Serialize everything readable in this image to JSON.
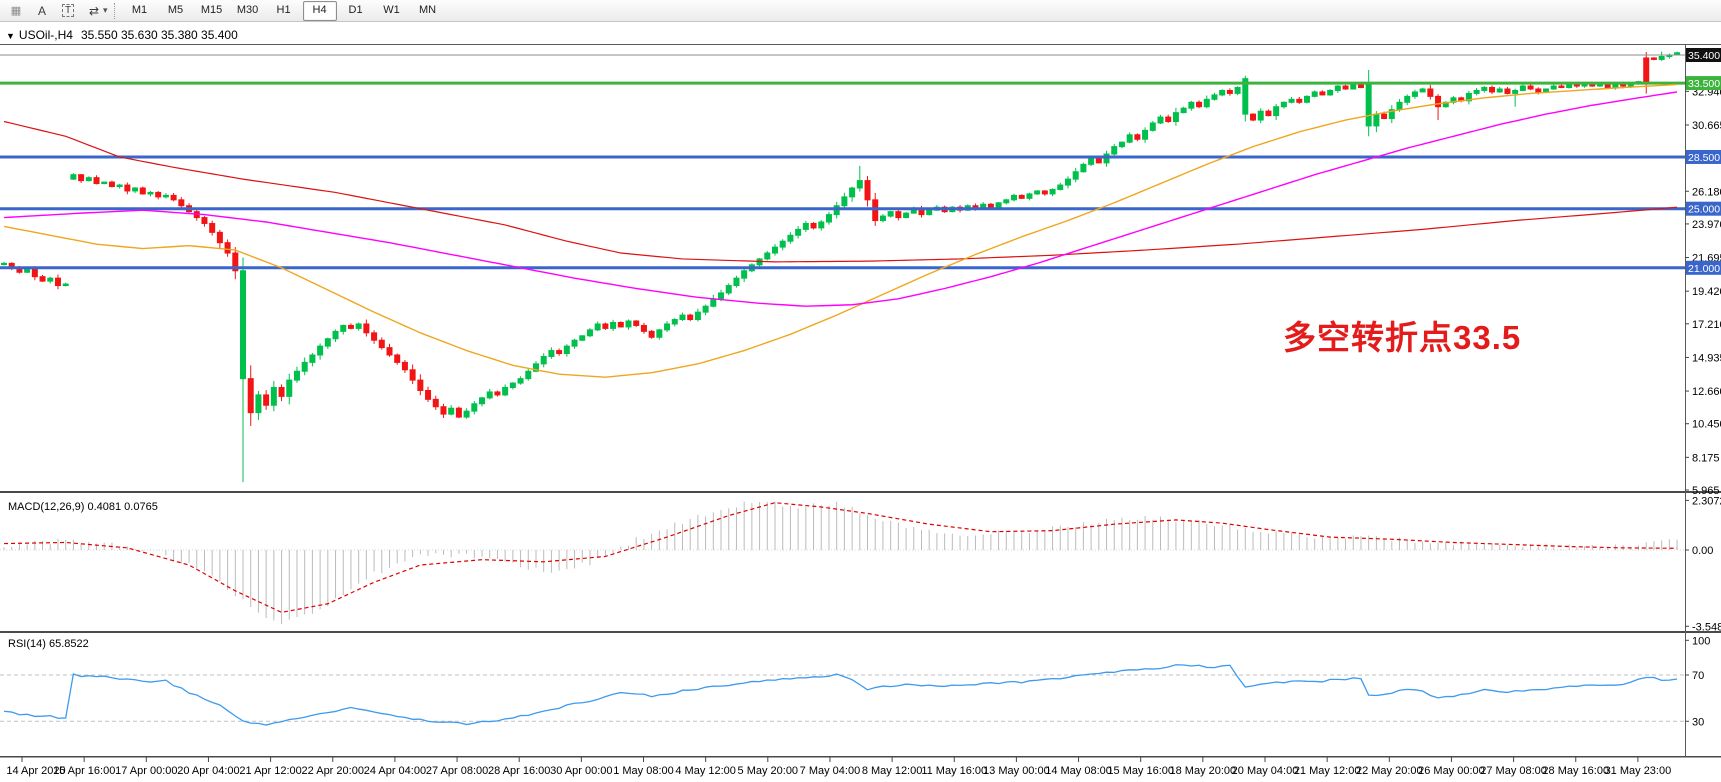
{
  "toolbar": {
    "icons": [
      {
        "name": "toolbar-grip-icon",
        "glyph": "▦",
        "boxed": false
      },
      {
        "name": "text-annotation-icon",
        "glyph": "A",
        "boxed": false
      },
      {
        "name": "text-label-icon",
        "glyph": "T",
        "boxed": true
      },
      {
        "name": "cycle-symbols-icon",
        "glyph": "⇄",
        "boxed": false
      },
      {
        "name": "dropdown-caret-icon",
        "glyph": "▾",
        "boxed": false
      }
    ],
    "timeframes": [
      {
        "label": "M1",
        "active": false
      },
      {
        "label": "M5",
        "active": false
      },
      {
        "label": "M15",
        "active": false
      },
      {
        "label": "M30",
        "active": false
      },
      {
        "label": "H1",
        "active": false
      },
      {
        "label": "H4",
        "active": true
      },
      {
        "label": "D1",
        "active": false
      },
      {
        "label": "W1",
        "active": false
      },
      {
        "label": "MN",
        "active": false
      }
    ]
  },
  "header": {
    "dropdown_glyph": "▼",
    "symbol_period": "USOil-,H4",
    "ohlc": "35.550 35.630 35.380 35.400"
  },
  "annotation": {
    "text": "多空转折点33.5",
    "color": "#e41b1b"
  },
  "price_axis": {
    "ticks": [
      {
        "label": "32.940",
        "value": 32.94
      },
      {
        "label": "30.665",
        "value": 30.665
      },
      {
        "label": "26.180",
        "value": 26.18
      },
      {
        "label": "23.970",
        "value": 23.97
      },
      {
        "label": "21.695",
        "value": 21.695
      },
      {
        "label": "19.420",
        "value": 19.42
      },
      {
        "label": "17.210",
        "value": 17.21
      },
      {
        "label": "14.935",
        "value": 14.935
      },
      {
        "label": "12.660",
        "value": 12.66
      },
      {
        "label": "10.450",
        "value": 10.45
      },
      {
        "label": "8.175",
        "value": 8.175
      },
      {
        "label": "5.965",
        "value": 5.965
      }
    ],
    "badges": [
      {
        "label": "35.400",
        "value": 35.4,
        "bg": "#111111",
        "fg": "#ffffff"
      },
      {
        "label": "33.500",
        "value": 33.5,
        "bg": "#3cb43c",
        "fg": "#ffffff"
      },
      {
        "label": "28.500",
        "value": 28.5,
        "bg": "#3a66cc",
        "fg": "#ffffff"
      },
      {
        "label": "25.000",
        "value": 25.0,
        "bg": "#3a66cc",
        "fg": "#ffffff"
      },
      {
        "label": "21.000",
        "value": 21.0,
        "bg": "#3a66cc",
        "fg": "#ffffff"
      }
    ]
  },
  "time_axis": {
    "labels": [
      "14 Apr 2020",
      "15 Apr 16:00",
      "17 Apr 00:00",
      "20 Apr 04:00",
      "21 Apr 12:00",
      "22 Apr 20:00",
      "24 Apr 04:00",
      "27 Apr 08:00",
      "28 Apr 16:00",
      "30 Apr 00:00",
      "1 May 08:00",
      "4 May 12:00",
      "5 May 20:00",
      "7 May 04:00",
      "8 May 12:00",
      "11 May 16:00",
      "13 May 00:00",
      "14 May 08:00",
      "15 May 16:00",
      "18 May 20:00",
      "20 May 04:00",
      "21 May 12:00",
      "22 May 20:00",
      "26 May 00:00",
      "27 May 08:00",
      "28 May 16:00",
      "31 May 23:00"
    ]
  },
  "panes": {
    "macd": {
      "label": "MACD(12,26,9)",
      "values": "0.4081 0.0765",
      "axis": [
        {
          "label": "2.3072",
          "value": 2.3072
        },
        {
          "label": "0.00",
          "value": 0
        },
        {
          "label": "-3.5484",
          "value": -3.5484
        }
      ]
    },
    "rsi": {
      "label": "RSI(14)",
      "values": "65.8522",
      "axis": [
        {
          "label": "100",
          "value": 100
        },
        {
          "label": "70",
          "value": 70
        },
        {
          "label": "30",
          "value": 30
        }
      ]
    }
  },
  "chart_data": {
    "type": "candlestick",
    "symbol": "USOil-",
    "timeframe": "H4",
    "current_price": 35.4,
    "ohlc_current": {
      "open": 35.55,
      "high": 35.63,
      "low": 35.38,
      "close": 35.4
    },
    "ylim": [
      5.965,
      35.4
    ],
    "closes": [
      21.3,
      21.0,
      20.7,
      20.9,
      20.4,
      20.1,
      20.3,
      19.8,
      19.9,
      27.3,
      26.9,
      27.1,
      26.7,
      26.8,
      26.5,
      26.6,
      26.2,
      26.4,
      26.0,
      26.1,
      25.8,
      25.9,
      25.6,
      25.2,
      24.8,
      24.4,
      24.0,
      23.4,
      22.7,
      22.0,
      20.8,
      13.5,
      11.2,
      12.4,
      11.7,
      12.9,
      12.3,
      13.4,
      14.0,
      14.6,
      15.1,
      15.7,
      16.2,
      16.7,
      17.1,
      16.9,
      17.2,
      16.6,
      16.1,
      15.6,
      15.1,
      14.6,
      14.1,
      13.4,
      12.7,
      12.1,
      11.6,
      11.1,
      11.5,
      10.9,
      11.3,
      11.8,
      12.2,
      12.6,
      12.4,
      12.9,
      13.2,
      13.5,
      14.0,
      14.5,
      15.0,
      15.4,
      15.2,
      15.7,
      16.1,
      16.4,
      16.8,
      17.2,
      16.9,
      17.3,
      17.0,
      17.4,
      17.1,
      16.7,
      16.3,
      16.8,
      17.2,
      17.5,
      17.8,
      17.5,
      18.0,
      18.4,
      18.9,
      19.3,
      19.8,
      20.3,
      20.8,
      21.2,
      21.6,
      22.0,
      22.4,
      22.8,
      23.2,
      23.6,
      24.0,
      23.7,
      24.1,
      24.6,
      25.2,
      25.8,
      26.4,
      26.9,
      25.6,
      24.2,
      24.5,
      24.8,
      24.4,
      24.7,
      25.0,
      24.6,
      24.9,
      25.1,
      24.8,
      25.1,
      24.9,
      25.2,
      25.0,
      25.3,
      25.1,
      25.4,
      25.6,
      25.9,
      25.7,
      26.0,
      26.2,
      26.0,
      26.3,
      26.6,
      27.0,
      27.5,
      28.0,
      28.4,
      28.1,
      28.7,
      29.2,
      29.5,
      30.0,
      29.7,
      30.3,
      30.8,
      31.2,
      30.9,
      31.5,
      31.8,
      32.2,
      31.9,
      32.4,
      32.7,
      33.0,
      32.8,
      33.2,
      31.4,
      31.0,
      31.6,
      31.3,
      31.9,
      32.2,
      32.4,
      32.2,
      32.6,
      32.9,
      32.7,
      33.0,
      33.3,
      33.1,
      33.4,
      33.2,
      30.6,
      31.4,
      31.1,
      31.7,
      32.2,
      32.6,
      32.9,
      33.1,
      32.6,
      31.9,
      32.2,
      32.5,
      32.3,
      32.8,
      33.0,
      33.2,
      32.9,
      33.1,
      32.8,
      33.0,
      33.3,
      33.1,
      32.9,
      33.1,
      33.3,
      33.2,
      33.4,
      33.3,
      33.5,
      33.3,
      33.4,
      33.2,
      33.4,
      33.3,
      33.5,
      33.6,
      35.2,
      35.1,
      35.3,
      35.4,
      35.4
    ],
    "overrides": {
      "9": {
        "open": 27.0
      },
      "31": {
        "low": 6.5,
        "bull": true
      },
      "111": {
        "high": 27.9
      },
      "161": {
        "open": 33.8,
        "high": 34.0,
        "low": 30.9,
        "bull": true
      },
      "177": {
        "open": 33.5,
        "low": 29.9,
        "bull": true
      },
      "186": {
        "low": 31.0
      },
      "196": {
        "low": 31.9
      },
      "213": {
        "open": 33.6,
        "high": 35.6,
        "bull": false
      },
      "215": {
        "high": 35.63,
        "low": 35.0
      },
      "217": {
        "open": 35.55,
        "high": 35.63,
        "low": 35.38,
        "bull": true
      }
    },
    "hlines": [
      {
        "value": 35.4,
        "color": "#8e8e8e",
        "width": 1
      },
      {
        "value": 33.5,
        "color": "#3cb43c",
        "width": 3
      },
      {
        "value": 28.5,
        "color": "#3a66cc",
        "width": 3
      },
      {
        "value": 25.0,
        "color": "#3a66cc",
        "width": 3
      },
      {
        "value": 21.0,
        "color": "#3a66cc",
        "width": 3
      }
    ],
    "ma_red": [
      [
        0,
        30.9
      ],
      [
        8,
        29.9
      ],
      [
        15,
        28.5
      ],
      [
        22,
        27.8
      ],
      [
        31,
        27.0
      ],
      [
        43,
        26.1
      ],
      [
        54,
        25.0
      ],
      [
        65,
        23.9
      ],
      [
        73,
        22.8
      ],
      [
        80,
        22.0
      ],
      [
        88,
        21.6
      ],
      [
        100,
        21.4
      ],
      [
        112,
        21.45
      ],
      [
        124,
        21.6
      ],
      [
        136,
        21.85
      ],
      [
        148,
        22.2
      ],
      [
        160,
        22.6
      ],
      [
        172,
        23.1
      ],
      [
        184,
        23.6
      ],
      [
        196,
        24.2
      ],
      [
        208,
        24.7
      ],
      [
        217,
        25.1
      ]
    ],
    "ma_magenta": [
      [
        0,
        24.4
      ],
      [
        10,
        24.7
      ],
      [
        18,
        24.9
      ],
      [
        26,
        24.6
      ],
      [
        34,
        24.1
      ],
      [
        42,
        23.4
      ],
      [
        50,
        22.7
      ],
      [
        58,
        21.9
      ],
      [
        66,
        21.1
      ],
      [
        74,
        20.3
      ],
      [
        82,
        19.6
      ],
      [
        90,
        19.0
      ],
      [
        98,
        18.6
      ],
      [
        104,
        18.4
      ],
      [
        110,
        18.5
      ],
      [
        116,
        18.9
      ],
      [
        122,
        19.6
      ],
      [
        128,
        20.4
      ],
      [
        134,
        21.3
      ],
      [
        140,
        22.3
      ],
      [
        146,
        23.3
      ],
      [
        152,
        24.3
      ],
      [
        158,
        25.3
      ],
      [
        164,
        26.3
      ],
      [
        170,
        27.3
      ],
      [
        176,
        28.2
      ],
      [
        182,
        29.1
      ],
      [
        188,
        29.9
      ],
      [
        194,
        30.7
      ],
      [
        200,
        31.4
      ],
      [
        206,
        32.0
      ],
      [
        212,
        32.5
      ],
      [
        217,
        32.9
      ]
    ],
    "ma_orange": [
      [
        0,
        23.8
      ],
      [
        6,
        23.2
      ],
      [
        12,
        22.6
      ],
      [
        18,
        22.3
      ],
      [
        24,
        22.5
      ],
      [
        30,
        22.2
      ],
      [
        36,
        21.0
      ],
      [
        42,
        19.5
      ],
      [
        48,
        18.0
      ],
      [
        54,
        16.6
      ],
      [
        60,
        15.4
      ],
      [
        66,
        14.4
      ],
      [
        72,
        13.8
      ],
      [
        78,
        13.6
      ],
      [
        84,
        13.9
      ],
      [
        90,
        14.5
      ],
      [
        96,
        15.4
      ],
      [
        102,
        16.5
      ],
      [
        108,
        17.8
      ],
      [
        114,
        19.2
      ],
      [
        120,
        20.6
      ],
      [
        126,
        21.9
      ],
      [
        132,
        23.1
      ],
      [
        138,
        24.2
      ],
      [
        144,
        25.4
      ],
      [
        150,
        26.7
      ],
      [
        156,
        28.0
      ],
      [
        162,
        29.2
      ],
      [
        168,
        30.2
      ],
      [
        174,
        31.0
      ],
      [
        180,
        31.6
      ],
      [
        186,
        32.1
      ],
      [
        192,
        32.5
      ],
      [
        198,
        32.8
      ],
      [
        204,
        33.0
      ],
      [
        210,
        33.2
      ],
      [
        217,
        33.4
      ]
    ],
    "macd_ylim": [
      -3.5484,
      2.3072
    ],
    "macd_current": [
      0.4081,
      0.0765
    ],
    "macd_hist": [
      [
        0,
        0.2
      ],
      [
        8,
        0.45
      ],
      [
        14,
        0.3
      ],
      [
        20,
        -0.1
      ],
      [
        26,
        -1.0
      ],
      [
        31,
        -2.4
      ],
      [
        36,
        -3.5
      ],
      [
        42,
        -2.6
      ],
      [
        48,
        -1.1
      ],
      [
        54,
        -0.3
      ],
      [
        60,
        -0.2
      ],
      [
        66,
        -0.6
      ],
      [
        71,
        -1.1
      ],
      [
        76,
        -0.6
      ],
      [
        82,
        0.5
      ],
      [
        88,
        1.3
      ],
      [
        93,
        1.9
      ],
      [
        98,
        2.3
      ],
      [
        103,
        2.0
      ],
      [
        108,
        2.2
      ],
      [
        113,
        1.5
      ],
      [
        118,
        1.0
      ],
      [
        124,
        0.75
      ],
      [
        130,
        0.8
      ],
      [
        136,
        1.0
      ],
      [
        142,
        1.3
      ],
      [
        148,
        1.5
      ],
      [
        154,
        1.35
      ],
      [
        160,
        1.05
      ],
      [
        166,
        0.75
      ],
      [
        172,
        0.55
      ],
      [
        178,
        0.6
      ],
      [
        184,
        0.4
      ],
      [
        190,
        0.3
      ],
      [
        196,
        0.22
      ],
      [
        202,
        0.15
      ],
      [
        207,
        0.1
      ],
      [
        211,
        0.2
      ],
      [
        214,
        0.41
      ],
      [
        217,
        0.41
      ]
    ],
    "macd_signal": [
      [
        0,
        0.3
      ],
      [
        8,
        0.35
      ],
      [
        16,
        0.1
      ],
      [
        24,
        -0.7
      ],
      [
        30,
        -1.9
      ],
      [
        36,
        -2.9
      ],
      [
        42,
        -2.5
      ],
      [
        48,
        -1.5
      ],
      [
        54,
        -0.7
      ],
      [
        62,
        -0.45
      ],
      [
        70,
        -0.55
      ],
      [
        78,
        -0.3
      ],
      [
        86,
        0.6
      ],
      [
        94,
        1.6
      ],
      [
        100,
        2.2
      ],
      [
        106,
        2.0
      ],
      [
        112,
        1.7
      ],
      [
        120,
        1.2
      ],
      [
        128,
        0.85
      ],
      [
        136,
        0.9
      ],
      [
        144,
        1.2
      ],
      [
        152,
        1.4
      ],
      [
        158,
        1.25
      ],
      [
        164,
        0.95
      ],
      [
        172,
        0.6
      ],
      [
        180,
        0.5
      ],
      [
        188,
        0.35
      ],
      [
        196,
        0.25
      ],
      [
        204,
        0.15
      ],
      [
        210,
        0.1
      ],
      [
        217,
        0.08
      ]
    ],
    "rsi_current": 65.8522,
    "rsi_levels": [
      70,
      30
    ],
    "rsi": [
      [
        0,
        38
      ],
      [
        4,
        35
      ],
      [
        8,
        33
      ],
      [
        9,
        70
      ],
      [
        14,
        68
      ],
      [
        18,
        64
      ],
      [
        21,
        65
      ],
      [
        24,
        55
      ],
      [
        28,
        44
      ],
      [
        31,
        30
      ],
      [
        34,
        27
      ],
      [
        38,
        33
      ],
      [
        42,
        38
      ],
      [
        45,
        42
      ],
      [
        48,
        38
      ],
      [
        52,
        33
      ],
      [
        56,
        30
      ],
      [
        60,
        28
      ],
      [
        64,
        31
      ],
      [
        68,
        36
      ],
      [
        72,
        42
      ],
      [
        76,
        48
      ],
      [
        80,
        55
      ],
      [
        84,
        52
      ],
      [
        88,
        56
      ],
      [
        92,
        60
      ],
      [
        96,
        63
      ],
      [
        100,
        66
      ],
      [
        104,
        68
      ],
      [
        108,
        70
      ],
      [
        110,
        66
      ],
      [
        112,
        58
      ],
      [
        114,
        60
      ],
      [
        118,
        62
      ],
      [
        122,
        60
      ],
      [
        126,
        62
      ],
      [
        130,
        63
      ],
      [
        134,
        65
      ],
      [
        138,
        68
      ],
      [
        142,
        72
      ],
      [
        146,
        74
      ],
      [
        150,
        76
      ],
      [
        153,
        79
      ],
      [
        156,
        77
      ],
      [
        159,
        78
      ],
      [
        161,
        60
      ],
      [
        164,
        62
      ],
      [
        167,
        65
      ],
      [
        170,
        64
      ],
      [
        173,
        66
      ],
      [
        176,
        67
      ],
      [
        177,
        52
      ],
      [
        180,
        55
      ],
      [
        183,
        58
      ],
      [
        186,
        50
      ],
      [
        189,
        53
      ],
      [
        192,
        58
      ],
      [
        195,
        55
      ],
      [
        198,
        57
      ],
      [
        201,
        59
      ],
      [
        204,
        60
      ],
      [
        207,
        61
      ],
      [
        210,
        62
      ],
      [
        213,
        68
      ],
      [
        215,
        66
      ],
      [
        217,
        66
      ]
    ],
    "colors": {
      "up": "#00c04d",
      "down": "#f21515",
      "ma_red": "#dd1111",
      "ma_magenta": "#ff00ff",
      "ma_orange": "#f0a61e",
      "macd_hist": "#bbbbbb",
      "macd_signal": "#e00000",
      "rsi": "#3d9aef",
      "price_line": "#8e8e8e"
    }
  }
}
